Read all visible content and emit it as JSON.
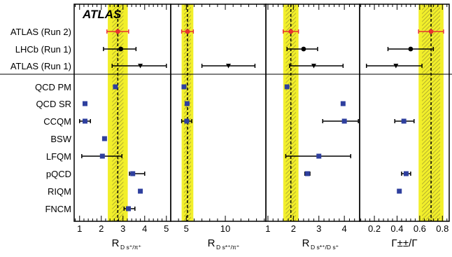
{
  "chart_data": {
    "type": "scatter",
    "banner": "ATLAS",
    "row_labels": [
      "ATLAS (Run 2)",
      "LHCb (Run 1)",
      "ATLAS (Run 1)",
      "QCD PM",
      "QCD SR",
      "CCQM",
      "BSW",
      "LFQM",
      "pQCD",
      "RIQM",
      "FNCM"
    ],
    "colors": {
      "band": "#f2ef2a",
      "hatch": "#a6a12f",
      "atlas_run2": "#e8332f",
      "lhcb": "#000000",
      "atlas_run1": "#000000",
      "theory": "#2e3f9e"
    },
    "panels": [
      {
        "id": "rdspi",
        "xlabel_main": "R",
        "xlabel_sub": "D s⁺/π⁺",
        "xlim": [
          0.75,
          5.2
        ],
        "ticks": [
          1,
          2,
          3,
          4,
          5
        ],
        "tick_labels": [
          "1",
          "2",
          "3",
          "4",
          "5"
        ],
        "band": {
          "center": 2.76,
          "yellow": [
            2.3,
            3.22
          ],
          "hatch": [
            2.5,
            3.02
          ]
        },
        "measurements": [
          {
            "row": 0,
            "value": 2.76,
            "err": [
              2.26,
              3.26
            ]
          },
          {
            "row": 1,
            "value": 2.9,
            "err": [
              2.1,
              3.6
            ]
          },
          {
            "row": 2,
            "value": 3.8,
            "err": [
              2.5,
              5.0
            ]
          }
        ],
        "theory": [
          {
            "row": 3,
            "value": 2.65,
            "err": null
          },
          {
            "row": 4,
            "value": 1.25,
            "err": null
          },
          {
            "row": 5,
            "value": 1.25,
            "err": [
              1.0,
              1.5
            ]
          },
          {
            "row": 6,
            "value": 2.15,
            "err": null
          },
          {
            "row": 7,
            "value": 2.05,
            "err": [
              1.1,
              2.95
            ]
          },
          {
            "row": 8,
            "value": 3.45,
            "err": [
              3.3,
              4.0
            ]
          },
          {
            "row": 9,
            "value": 3.8,
            "err": null
          },
          {
            "row": 10,
            "value": 3.25,
            "err": [
              3.05,
              3.55
            ]
          }
        ]
      },
      {
        "id": "rdsstpi",
        "xlabel_main": "R",
        "xlabel_sub": "D s*⁺/π⁺",
        "xlim": [
          3.0,
          15.2
        ],
        "ticks": [
          5,
          10
        ],
        "tick_labels": [
          "5",
          "10"
        ],
        "band": {
          "center": 5.15,
          "yellow": [
            4.4,
            5.9
          ],
          "hatch": [
            4.7,
            5.6
          ]
        },
        "measurements": [
          {
            "row": 0,
            "value": 5.15,
            "err": [
              4.4,
              5.9
            ]
          },
          {
            "row": 2,
            "value": 10.4,
            "err": [
              7.0,
              13.8
            ]
          }
        ],
        "theory": [
          {
            "row": 3,
            "value": 4.7,
            "err": null
          },
          {
            "row": 4,
            "value": 5.1,
            "err": null
          },
          {
            "row": 5,
            "value": 5.05,
            "err": [
              4.4,
              5.7
            ]
          }
        ]
      },
      {
        "id": "rdsstds",
        "xlabel_main": "R",
        "xlabel_sub": "D s*⁺/D s⁺",
        "xlim": [
          0.92,
          4.6
        ],
        "ticks": [
          1,
          2,
          3,
          4
        ],
        "tick_labels": [
          "1",
          "2",
          "3",
          "4"
        ],
        "band": {
          "center": 1.9,
          "yellow": [
            1.6,
            2.2
          ],
          "hatch": [
            1.7,
            2.1
          ]
        },
        "measurements": [
          {
            "row": 0,
            "value": 1.9,
            "err": [
              1.6,
              2.2
            ]
          },
          {
            "row": 1,
            "value": 2.4,
            "err": [
              1.75,
              2.95
            ]
          },
          {
            "row": 2,
            "value": 2.8,
            "err": [
              1.85,
              3.95
            ]
          }
        ],
        "theory": [
          {
            "row": 3,
            "value": 1.75,
            "err": null
          },
          {
            "row": 4,
            "value": 3.95,
            "err": null
          },
          {
            "row": 5,
            "value": 4.0,
            "err": [
              3.15,
              4.55
            ]
          },
          {
            "row": 7,
            "value": 3.0,
            "err": [
              1.7,
              4.25
            ]
          },
          {
            "row": 8,
            "value": 2.55,
            "err": [
              2.45,
              2.65
            ]
          }
        ]
      },
      {
        "id": "gammaratio",
        "xlabel_main": "Γ±±/Γ",
        "xlabel_sub": "",
        "xlim": [
          0.07,
          0.86
        ],
        "ticks": [
          0.2,
          0.4,
          0.6,
          0.8
        ],
        "tick_labels": [
          "0.2",
          "0.4",
          "0.6",
          "0.8"
        ],
        "band": {
          "center": 0.7,
          "yellow": [
            0.59,
            0.81
          ],
          "hatch": [
            0.62,
            0.78
          ]
        },
        "measurements": [
          {
            "row": 0,
            "value": 0.7,
            "err": [
              0.59,
              0.81
            ]
          },
          {
            "row": 1,
            "value": 0.52,
            "err": [
              0.32,
              0.72
            ]
          },
          {
            "row": 2,
            "value": 0.39,
            "err": [
              0.13,
              0.62
            ]
          }
        ],
        "theory": [
          {
            "row": 5,
            "value": 0.46,
            "err": [
              0.38,
              0.55
            ]
          },
          {
            "row": 8,
            "value": 0.48,
            "err": [
              0.44,
              0.52
            ]
          },
          {
            "row": 9,
            "value": 0.42,
            "err": null
          }
        ]
      }
    ]
  }
}
